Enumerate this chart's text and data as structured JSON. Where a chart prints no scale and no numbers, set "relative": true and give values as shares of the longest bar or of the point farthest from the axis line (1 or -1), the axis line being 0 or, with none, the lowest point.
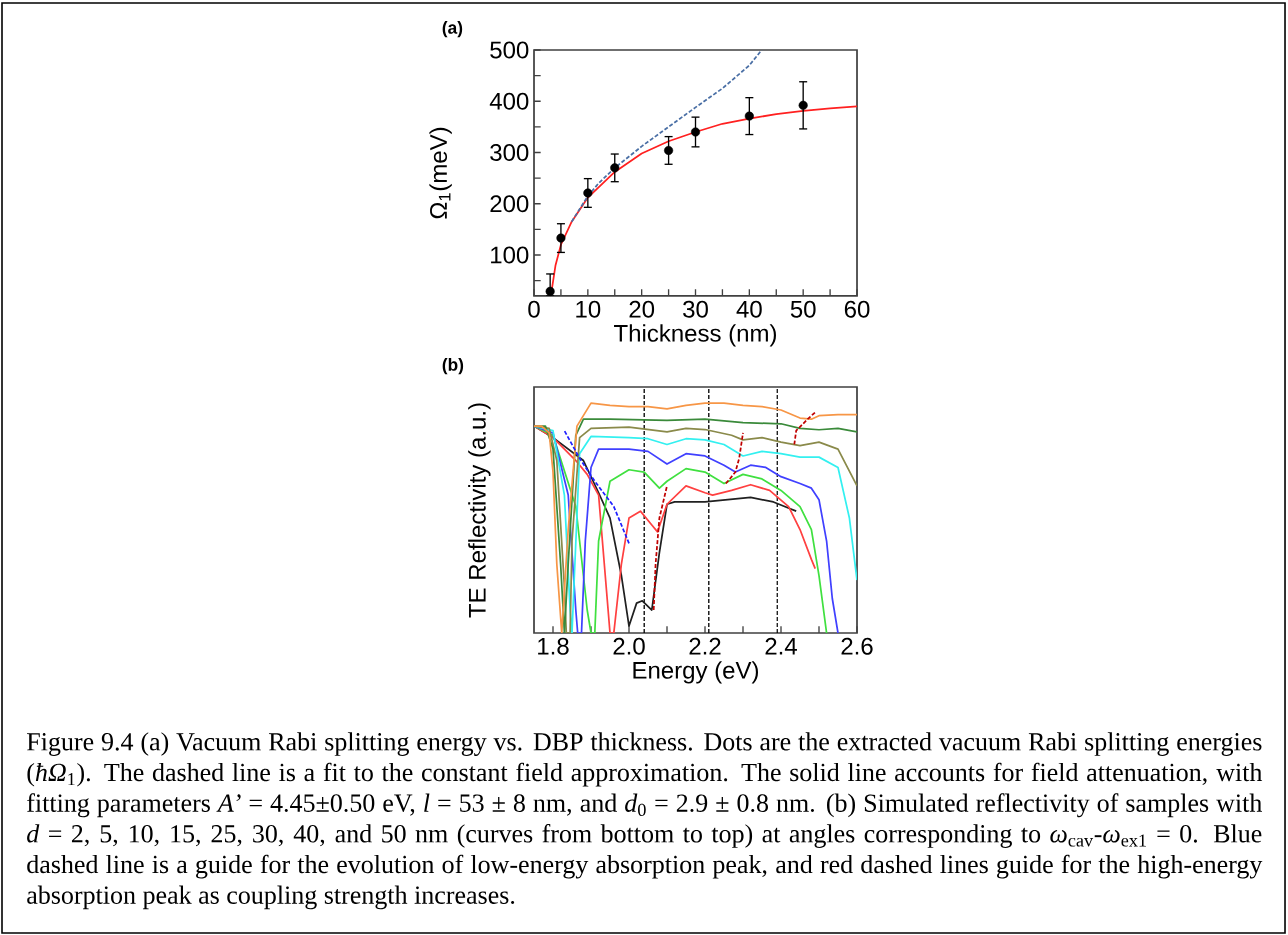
{
  "chart_data": [
    {
      "type": "scatter",
      "title": "(a)",
      "xlabel": "Thickness (nm)",
      "ylabel": "Ω$_{1}$(meV)",
      "x": [
        3,
        5,
        10,
        15,
        25,
        30,
        40,
        50
      ],
      "xlim": [
        0,
        60
      ],
      "ylim": [
        20,
        500
      ],
      "xticks": [
        0,
        {
          "value": 5,
          "label": null
        },
        10,
        {
          "value": 15,
          "label": null
        },
        20,
        {
          "value": 25,
          "label": null
        },
        30,
        {
          "value": 35,
          "label": null
        },
        40,
        {
          "value": 45,
          "label": null
        },
        50,
        {
          "value": 55,
          "label": null
        },
        60
      ],
      "yticks": [
        {
          "value": 50,
          "label": null
        },
        100,
        {
          "value": 150,
          "label": null
        },
        200,
        {
          "value": 250,
          "label": null
        },
        300,
        {
          "value": 350,
          "label": null
        },
        400,
        {
          "value": 450,
          "label": null
        },
        500
      ],
      "series": [
        {
          "type": "line",
          "x": [
            3.2,
            4,
            5,
            7,
            10,
            15,
            20,
            25,
            30,
            35,
            40,
            45,
            50,
            55,
            60
          ],
          "values": [
            25,
            80,
            120,
            165,
            212,
            262,
            298,
            322,
            340,
            356,
            366,
            375,
            381,
            386,
            390
          ],
          "color": "#ff2020",
          "line_style": "solid"
        },
        {
          "type": "line",
          "x": [
            7,
            10,
            12,
            15,
            20,
            25,
            30,
            35,
            40,
            42.3
          ],
          "values": [
            165,
            215,
            240,
            270,
            312,
            350,
            388,
            425,
            470,
            500
          ],
          "color": "#4a6fa5",
          "line_style": "dashed"
        },
        {
          "type": "scatter",
          "values": [
            29,
            133,
            221,
            270,
            304,
            340,
            371,
            392
          ],
          "errors": [
            [
              20,
              63
            ],
            28,
            28,
            27,
            27,
            29,
            36,
            46
          ],
          "color": "#000000"
        }
      ]
    },
    {
      "type": "line",
      "title": "(b)",
      "xlabel": "Energy (eV)",
      "ylabel": "TE Reflectivity (a.u.)",
      "relative": true,
      "xlim": [
        1.75,
        2.6
      ],
      "xticks": [
        1.8,
        {
          "value": 1.9,
          "label": null
        },
        {
          "value": 2.0,
          "label": "2.0"
        },
        {
          "value": 2.1,
          "label": null
        },
        2.2,
        {
          "value": 2.3,
          "label": null
        },
        2.4,
        {
          "value": 2.5,
          "label": null
        },
        2.6
      ],
      "ref_lines": [
        {
          "axis": "x",
          "value": 2.04,
          "color": "#000000",
          "line_style": "dashed"
        },
        {
          "axis": "x",
          "value": 2.21,
          "color": "#000000",
          "line_style": "dashed"
        },
        {
          "axis": "x",
          "value": 2.39,
          "color": "#000000",
          "line_style": "dashed"
        }
      ],
      "annotations": [
        "Figure 9.4 (a) Vacuum Rabi splitting energy vs. DBP thickness. Dots are the extracted vacuum Rabi splitting energies (*ħΩ*$_{1}$). The dashed line is a fit to the constant field approximation. The solid line accounts for field attenuation, with fitting parameters *A’* = 4.45±0.50 eV, *l* = 53 ± 8 nm, and *d*$_{0}$ = 2.9 ± 0.8 nm. (b) Simulated reflectivity of samples with *d* = 2, 5, 10, 15, 25, 30, 40, and 50 nm (curves from bottom to top) at angles corresponding to *ω*$_{cav}$-*ω*$_{ex1}$ = 0. Blue dashed line is a guide for the evolution of low-energy absorption peak, and red dashed lines guide for the high-energy absorption peak as coupling strength increases."
      ],
      "series": [
        {
          "color": "#202020",
          "x": [
            1.75,
            1.8,
            1.88,
            1.92,
            1.95,
            1.98,
            2.0,
            2.02,
            2.035,
            2.06,
            2.08,
            2.1,
            2.12,
            2.2,
            2.26,
            2.32,
            2.38,
            2.44
          ],
          "values": [
            0.9,
            0.85,
            0.75,
            0.61,
            0.5,
            0.25,
            0.03,
            0.13,
            0.14,
            0.1,
            0.35,
            0.56,
            0.57,
            0.57,
            0.58,
            0.59,
            0.57,
            0.53
          ]
        },
        {
          "color": "#ff4040",
          "x": [
            1.75,
            1.8,
            1.86,
            1.89,
            1.92,
            1.94,
            1.95,
            1.96,
            1.98,
            2.0,
            2.03,
            2.06,
            2.075,
            2.1,
            2.15,
            2.2,
            2.22,
            2.27,
            2.32,
            2.37,
            2.42,
            2.45,
            2.48,
            2.49
          ],
          "values": [
            0.9,
            0.85,
            0.75,
            0.69,
            0.6,
            0.2,
            0,
            0,
            0.3,
            0.5,
            0.53,
            0.47,
            0.44,
            0.56,
            0.64,
            0.61,
            0.6,
            0.62,
            0.645,
            0.62,
            0.55,
            0.45,
            0.32,
            0.28
          ]
        },
        {
          "color": "#40e040",
          "x": [
            1.75,
            1.8,
            1.86,
            1.89,
            1.9,
            1.91,
            1.92,
            1.95,
            2.0,
            2.04,
            2.08,
            2.1,
            2.15,
            2.2,
            2.25,
            2.3,
            2.35,
            2.4,
            2.45,
            2.48,
            2.5,
            2.52
          ],
          "values": [
            0.9,
            0.86,
            0.55,
            0.1,
            0,
            0,
            0.4,
            0.66,
            0.71,
            0.7,
            0.63,
            0.66,
            0.715,
            0.7,
            0.65,
            0.69,
            0.67,
            0.62,
            0.55,
            0.45,
            0.25,
            0
          ]
        },
        {
          "color": "#4040ff",
          "x": [
            1.75,
            1.8,
            1.84,
            1.86,
            1.865,
            1.875,
            1.885,
            1.9,
            1.92,
            2.0,
            2.05,
            2.1,
            2.15,
            2.2,
            2.25,
            2.28,
            2.32,
            2.36,
            2.4,
            2.45,
            2.48,
            2.5,
            2.52,
            2.535,
            2.55
          ],
          "values": [
            0.9,
            0.87,
            0.6,
            0.1,
            0,
            0,
            0.4,
            0.72,
            0.8,
            0.8,
            0.79,
            0.735,
            0.78,
            0.77,
            0.73,
            0.7,
            0.73,
            0.72,
            0.68,
            0.65,
            0.63,
            0.58,
            0.4,
            0.15,
            0
          ]
        },
        {
          "color": "#33f0f0",
          "x": [
            1.75,
            1.8,
            1.83,
            1.845,
            1.85,
            1.855,
            1.87,
            1.9,
            2.0,
            2.05,
            2.1,
            2.15,
            2.2,
            2.25,
            2.3,
            2.35,
            2.4,
            2.45,
            2.5,
            2.55,
            2.58,
            2.6
          ],
          "values": [
            0.9,
            0.88,
            0.6,
            0.1,
            0,
            0.2,
            0.78,
            0.855,
            0.85,
            0.845,
            0.82,
            0.845,
            0.84,
            0.82,
            0.77,
            0.79,
            0.78,
            0.765,
            0.765,
            0.72,
            0.5,
            0.23
          ]
        },
        {
          "color": "#8a8a4a",
          "x": [
            1.75,
            1.79,
            1.81,
            1.83,
            1.835,
            1.845,
            1.85,
            1.87,
            1.9,
            2.0,
            2.1,
            2.15,
            2.2,
            2.27,
            2.3,
            2.35,
            2.4,
            2.45,
            2.5,
            2.55,
            2.6
          ],
          "values": [
            0.9,
            0.89,
            0.75,
            0.2,
            0,
            0,
            0.4,
            0.85,
            0.89,
            0.895,
            0.875,
            0.89,
            0.885,
            0.86,
            0.84,
            0.85,
            0.83,
            0.815,
            0.83,
            0.8,
            0.64
          ]
        },
        {
          "color": "#3a8a3a",
          "x": [
            1.75,
            1.78,
            1.8,
            1.82,
            1.83,
            1.84,
            1.86,
            1.88,
            1.95,
            2.1,
            2.2,
            2.3,
            2.4,
            2.45,
            2.5,
            2.55,
            2.6
          ],
          "values": [
            0.9,
            0.9,
            0.8,
            0.3,
            0,
            0.3,
            0.86,
            0.93,
            0.93,
            0.925,
            0.93,
            0.915,
            0.91,
            0.89,
            0.884,
            0.89,
            0.875
          ]
        },
        {
          "color": "#f79646",
          "x": [
            1.75,
            1.77,
            1.79,
            1.8,
            1.81,
            1.823,
            1.84,
            1.863,
            1.9,
            1.95,
            2.0,
            2.05,
            2.1,
            2.15,
            2.2,
            2.25,
            2.3,
            2.35,
            2.4,
            2.45,
            2.48,
            2.5,
            2.55,
            2.6
          ],
          "values": [
            0.9,
            0.9,
            0.87,
            0.7,
            0.3,
            0,
            0.45,
            0.9,
            1,
            0.99,
            0.985,
            0.985,
            0.975,
            0.99,
            1,
            1,
            0.99,
            0.985,
            0.97,
            0.935,
            0.93,
            0.945,
            0.95,
            0.95
          ]
        },
        {
          "color": "#2020ff",
          "line_style": "dashed",
          "x": [
            2.0,
            1.96,
            1.91,
            1.87,
            1.83
          ],
          "values": [
            0.39,
            0.55,
            0.66,
            0.76,
            0.88
          ]
        },
        {
          "color": "#c00000",
          "line_style": "dashed",
          "x": [
            2.065,
            2.07,
            2.08,
            2.1
          ],
          "values": [
            0.1,
            0.3,
            0.5,
            0.64
          ]
        },
        {
          "color": "#c00000",
          "line_style": "dashed",
          "x": [
            2.255,
            2.28,
            2.29,
            2.3
          ],
          "values": [
            0.65,
            0.7,
            0.76,
            0.87
          ]
        },
        {
          "color": "#c00000",
          "line_style": "dashed",
          "x": [
            2.435,
            2.44,
            2.47,
            2.49
          ],
          "values": [
            0.82,
            0.88,
            0.93,
            0.96
          ]
        }
      ]
    }
  ]
}
